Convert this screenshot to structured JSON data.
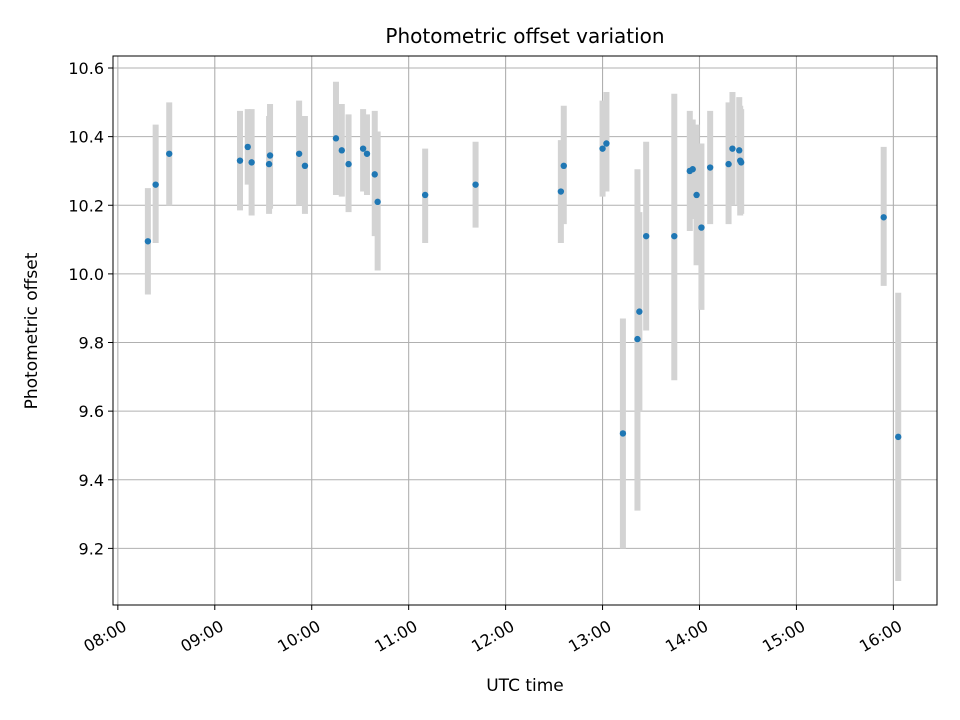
{
  "chart_data": {
    "type": "scatter",
    "title": "Photometric offset variation",
    "xlabel": "UTC time",
    "ylabel": "Photometric offset",
    "xlim_hours": [
      7.95,
      16.45
    ],
    "ylim": [
      9.035,
      10.635
    ],
    "grid": true,
    "x_ticks": [
      {
        "value": 8,
        "label": "08:00"
      },
      {
        "value": 9,
        "label": "09:00"
      },
      {
        "value": 10,
        "label": "10:00"
      },
      {
        "value": 11,
        "label": "11:00"
      },
      {
        "value": 12,
        "label": "12:00"
      },
      {
        "value": 13,
        "label": "13:00"
      },
      {
        "value": 14,
        "label": "14:00"
      },
      {
        "value": 15,
        "label": "15:00"
      },
      {
        "value": 16,
        "label": "16:00"
      }
    ],
    "y_ticks": [
      {
        "value": 9.2,
        "label": "9.2"
      },
      {
        "value": 9.4,
        "label": "9.4"
      },
      {
        "value": 9.6,
        "label": "9.6"
      },
      {
        "value": 9.8,
        "label": "9.8"
      },
      {
        "value": 10.0,
        "label": "10.0"
      },
      {
        "value": 10.2,
        "label": "10.2"
      },
      {
        "value": 10.4,
        "label": "10.4"
      },
      {
        "value": 10.6,
        "label": "10.6"
      }
    ],
    "series": [
      {
        "name": "Photometric offset",
        "marker_color": "#1f77b4",
        "errorbar_color": "#d3d3d3",
        "points": [
          {
            "t": 8.31,
            "y": 10.095,
            "lo": 9.94,
            "hi": 10.25
          },
          {
            "t": 8.39,
            "y": 10.26,
            "lo": 10.09,
            "hi": 10.435
          },
          {
            "t": 8.53,
            "y": 10.35,
            "lo": 10.2,
            "hi": 10.5
          },
          {
            "t": 9.26,
            "y": 10.33,
            "lo": 10.185,
            "hi": 10.475
          },
          {
            "t": 9.34,
            "y": 10.37,
            "lo": 10.26,
            "hi": 10.48
          },
          {
            "t": 9.38,
            "y": 10.325,
            "lo": 10.17,
            "hi": 10.48
          },
          {
            "t": 9.56,
            "y": 10.32,
            "lo": 10.175,
            "hi": 10.46
          },
          {
            "t": 9.57,
            "y": 10.345,
            "lo": 10.19,
            "hi": 10.495
          },
          {
            "t": 9.87,
            "y": 10.35,
            "lo": 10.2,
            "hi": 10.505
          },
          {
            "t": 9.93,
            "y": 10.315,
            "lo": 10.175,
            "hi": 10.46
          },
          {
            "t": 10.25,
            "y": 10.395,
            "lo": 10.23,
            "hi": 10.56
          },
          {
            "t": 10.31,
            "y": 10.36,
            "lo": 10.225,
            "hi": 10.495
          },
          {
            "t": 10.38,
            "y": 10.32,
            "lo": 10.18,
            "hi": 10.465
          },
          {
            "t": 10.53,
            "y": 10.365,
            "lo": 10.24,
            "hi": 10.48
          },
          {
            "t": 10.57,
            "y": 10.35,
            "lo": 10.23,
            "hi": 10.465
          },
          {
            "t": 10.65,
            "y": 10.29,
            "lo": 10.11,
            "hi": 10.475
          },
          {
            "t": 10.68,
            "y": 10.21,
            "lo": 10.01,
            "hi": 10.415
          },
          {
            "t": 11.17,
            "y": 10.23,
            "lo": 10.09,
            "hi": 10.365
          },
          {
            "t": 11.69,
            "y": 10.26,
            "lo": 10.135,
            "hi": 10.385
          },
          {
            "t": 12.57,
            "y": 10.24,
            "lo": 10.09,
            "hi": 10.39
          },
          {
            "t": 12.6,
            "y": 10.315,
            "lo": 10.145,
            "hi": 10.49
          },
          {
            "t": 13.0,
            "y": 10.365,
            "lo": 10.225,
            "hi": 10.505
          },
          {
            "t": 13.04,
            "y": 10.38,
            "lo": 10.24,
            "hi": 10.53
          },
          {
            "t": 13.21,
            "y": 9.535,
            "lo": 9.2,
            "hi": 9.87
          },
          {
            "t": 13.36,
            "y": 9.81,
            "lo": 9.31,
            "hi": 10.305
          },
          {
            "t": 13.38,
            "y": 9.89,
            "lo": 9.6,
            "hi": 10.18
          },
          {
            "t": 13.45,
            "y": 10.11,
            "lo": 9.835,
            "hi": 10.385
          },
          {
            "t": 13.74,
            "y": 10.11,
            "lo": 9.69,
            "hi": 10.525
          },
          {
            "t": 13.9,
            "y": 10.3,
            "lo": 10.125,
            "hi": 10.475
          },
          {
            "t": 13.93,
            "y": 10.305,
            "lo": 10.16,
            "hi": 10.45
          },
          {
            "t": 13.97,
            "y": 10.23,
            "lo": 10.025,
            "hi": 10.435
          },
          {
            "t": 14.02,
            "y": 10.135,
            "lo": 9.895,
            "hi": 10.38
          },
          {
            "t": 14.11,
            "y": 10.31,
            "lo": 10.145,
            "hi": 10.475
          },
          {
            "t": 14.3,
            "y": 10.32,
            "lo": 10.145,
            "hi": 10.5
          },
          {
            "t": 14.34,
            "y": 10.365,
            "lo": 10.2,
            "hi": 10.53
          },
          {
            "t": 14.41,
            "y": 10.36,
            "lo": 10.2,
            "hi": 10.515
          },
          {
            "t": 14.42,
            "y": 10.33,
            "lo": 10.17,
            "hi": 10.49
          },
          {
            "t": 14.43,
            "y": 10.325,
            "lo": 10.175,
            "hi": 10.48
          },
          {
            "t": 15.9,
            "y": 10.165,
            "lo": 9.965,
            "hi": 10.37
          },
          {
            "t": 16.05,
            "y": 9.525,
            "lo": 9.105,
            "hi": 9.945
          }
        ]
      }
    ]
  }
}
